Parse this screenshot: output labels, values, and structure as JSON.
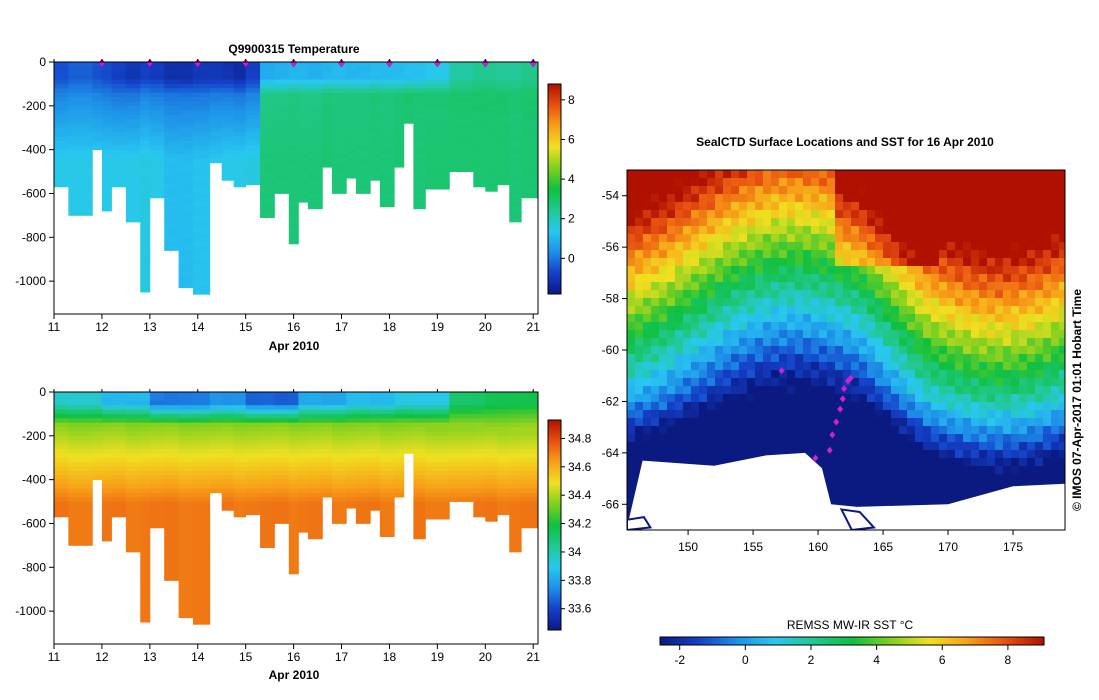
{
  "colors": {
    "temperature_ramp": [
      "#0a1a80",
      "#1440c8",
      "#1e90e8",
      "#28c8f0",
      "#22c890",
      "#10c040",
      "#80d020",
      "#f0e020",
      "#f8a018",
      "#e85010",
      "#b01000"
    ],
    "salinity_ramp": [
      "#0a1a80",
      "#1440c8",
      "#1e90e8",
      "#28c8f0",
      "#22c890",
      "#10c040",
      "#80d020",
      "#f0e020",
      "#f8a018",
      "#e85010",
      "#b01000"
    ],
    "sst_ramp": [
      "#0a1a80",
      "#1440c8",
      "#1e90e8",
      "#28c8f0",
      "#22c890",
      "#10c040",
      "#80d020",
      "#f0e020",
      "#f8a018",
      "#e85010",
      "#b01000"
    ],
    "profile_marker": "#d020d0",
    "land": "#ffffff"
  },
  "chart_data": [
    {
      "type": "heatmap",
      "title": "Q9900315  Temperature",
      "xlabel": "Apr 2010",
      "ylabel": "",
      "x_ticks": [
        "11",
        "12",
        "13",
        "14",
        "15",
        "16",
        "17",
        "18",
        "19",
        "20",
        "21"
      ],
      "xlim": [
        11,
        21.1
      ],
      "y_ticks": [
        "0",
        "-200",
        "-400",
        "-600",
        "-800",
        "-1000"
      ],
      "ylim": [
        -1150,
        0
      ],
      "colorbar": {
        "ticks": [
          "0",
          "2",
          "4",
          "6",
          "8"
        ],
        "range": [
          -1.8,
          8.8
        ]
      },
      "profile_days": [
        12,
        13,
        14,
        15,
        16,
        17,
        18,
        19,
        20,
        21
      ],
      "columns": [
        {
          "x0": 11.0,
          "x1": 11.3,
          "depth": -570,
          "surface": -0.5,
          "upper": 0.2,
          "deep": 1.5
        },
        {
          "x0": 11.3,
          "x1": 11.8,
          "depth": -700,
          "surface": -0.3,
          "upper": 0.3,
          "deep": 1.5
        },
        {
          "x0": 11.8,
          "x1": 12.0,
          "depth": -400,
          "surface": -0.5,
          "upper": 0.2,
          "deep": 1.5
        },
        {
          "x0": 12.0,
          "x1": 12.2,
          "depth": -680,
          "surface": -0.6,
          "upper": 0.1,
          "deep": 1.5
        },
        {
          "x0": 12.2,
          "x1": 12.5,
          "depth": -570,
          "surface": -0.8,
          "upper": 0.0,
          "deep": 1.5
        },
        {
          "x0": 12.5,
          "x1": 12.8,
          "depth": -730,
          "surface": -1.0,
          "upper": 0.0,
          "deep": 1.5
        },
        {
          "x0": 12.8,
          "x1": 13.0,
          "depth": -1050,
          "surface": -0.8,
          "upper": 0.2,
          "deep": 1.6
        },
        {
          "x0": 13.0,
          "x1": 13.3,
          "depth": -620,
          "surface": -0.9,
          "upper": 0.1,
          "deep": 1.5
        },
        {
          "x0": 13.3,
          "x1": 13.6,
          "depth": -860,
          "surface": -1.2,
          "upper": 0.0,
          "deep": 1.2
        },
        {
          "x0": 13.6,
          "x1": 13.9,
          "depth": -1030,
          "surface": -1.2,
          "upper": 0.0,
          "deep": 1.2
        },
        {
          "x0": 13.9,
          "x1": 14.25,
          "depth": -1060,
          "surface": -1.0,
          "upper": 0.0,
          "deep": 1.3
        },
        {
          "x0": 14.25,
          "x1": 14.5,
          "depth": -460,
          "surface": -1.0,
          "upper": 0.1,
          "deep": 1.4
        },
        {
          "x0": 14.5,
          "x1": 14.75,
          "depth": -540,
          "surface": -1.1,
          "upper": 0.1,
          "deep": 1.5
        },
        {
          "x0": 14.75,
          "x1": 15.0,
          "depth": -570,
          "surface": -1.3,
          "upper": 0.0,
          "deep": 1.5
        },
        {
          "x0": 15.0,
          "x1": 15.3,
          "depth": -560,
          "surface": -0.8,
          "upper": 0.2,
          "deep": 1.6
        },
        {
          "x0": 15.3,
          "x1": 15.6,
          "depth": -710,
          "surface": 0.8,
          "upper": 2.6,
          "deep": 2.8
        },
        {
          "x0": 15.6,
          "x1": 15.9,
          "depth": -600,
          "surface": 0.9,
          "upper": 2.6,
          "deep": 2.8
        },
        {
          "x0": 15.9,
          "x1": 16.1,
          "depth": -830,
          "surface": 1.0,
          "upper": 2.7,
          "deep": 2.8
        },
        {
          "x0": 16.1,
          "x1": 16.3,
          "depth": -640,
          "surface": 1.0,
          "upper": 2.6,
          "deep": 2.8
        },
        {
          "x0": 16.3,
          "x1": 16.6,
          "depth": -670,
          "surface": 0.9,
          "upper": 2.6,
          "deep": 2.8
        },
        {
          "x0": 16.6,
          "x1": 16.8,
          "depth": -480,
          "surface": 1.0,
          "upper": 2.8,
          "deep": 2.9
        },
        {
          "x0": 16.8,
          "x1": 17.1,
          "depth": -600,
          "surface": 1.1,
          "upper": 2.7,
          "deep": 2.8
        },
        {
          "x0": 17.1,
          "x1": 17.3,
          "depth": -530,
          "surface": 1.0,
          "upper": 2.7,
          "deep": 2.8
        },
        {
          "x0": 17.3,
          "x1": 17.6,
          "depth": -600,
          "surface": 1.0,
          "upper": 2.7,
          "deep": 2.8
        },
        {
          "x0": 17.6,
          "x1": 17.8,
          "depth": -540,
          "surface": 1.1,
          "upper": 2.8,
          "deep": 2.8
        },
        {
          "x0": 17.8,
          "x1": 18.1,
          "depth": -660,
          "surface": 1.1,
          "upper": 2.7,
          "deep": 2.8
        },
        {
          "x0": 18.1,
          "x1": 18.3,
          "depth": -480,
          "surface": 1.1,
          "upper": 2.8,
          "deep": 2.9
        },
        {
          "x0": 18.3,
          "x1": 18.5,
          "depth": -280,
          "surface": 1.2,
          "upper": 2.9,
          "deep": 2.9
        },
        {
          "x0": 18.5,
          "x1": 18.75,
          "depth": -670,
          "surface": 1.2,
          "upper": 2.8,
          "deep": 2.8
        },
        {
          "x0": 18.75,
          "x1": 19.25,
          "depth": -580,
          "surface": 1.4,
          "upper": 2.8,
          "deep": 2.9
        },
        {
          "x0": 19.25,
          "x1": 19.75,
          "depth": -500,
          "surface": 2.2,
          "upper": 2.9,
          "deep": 2.9
        },
        {
          "x0": 19.75,
          "x1": 20.0,
          "depth": -570,
          "surface": 2.4,
          "upper": 2.9,
          "deep": 2.9
        },
        {
          "x0": 20.0,
          "x1": 20.25,
          "depth": -590,
          "surface": 2.4,
          "upper": 2.9,
          "deep": 2.9
        },
        {
          "x0": 20.25,
          "x1": 20.5,
          "depth": -560,
          "surface": 2.3,
          "upper": 2.9,
          "deep": 2.9
        },
        {
          "x0": 20.5,
          "x1": 20.75,
          "depth": -730,
          "surface": 2.3,
          "upper": 2.8,
          "deep": 2.8
        },
        {
          "x0": 20.75,
          "x1": 21.1,
          "depth": -620,
          "surface": 2.5,
          "upper": 2.9,
          "deep": 2.9
        }
      ]
    },
    {
      "type": "heatmap",
      "title": "",
      "xlabel": "Apr 2010",
      "ylabel": "",
      "x_ticks": [
        "11",
        "12",
        "13",
        "14",
        "15",
        "16",
        "17",
        "18",
        "19",
        "20",
        "21"
      ],
      "xlim": [
        11,
        21.1
      ],
      "y_ticks": [
        "0",
        "-200",
        "-400",
        "-600",
        "-800",
        "-1000"
      ],
      "ylim": [
        -1150,
        0
      ],
      "colorbar": {
        "ticks": [
          "33.6",
          "33.8",
          "34",
          "34.2",
          "34.4",
          "34.6",
          "34.8"
        ],
        "range": [
          33.45,
          34.93
        ]
      },
      "surface_salinity": [
        33.95,
        33.85,
        33.7,
        33.75,
        33.65,
        33.8,
        33.85,
        33.9,
        34.1,
        34.15
      ],
      "deep_salinity": 34.72
    },
    {
      "type": "heatmap",
      "title": "SealCTD Surface Locations and SST for 16 Apr 2010",
      "xlabel": "",
      "ylabel": "",
      "x_ticks": [
        "150",
        "155",
        "160",
        "165",
        "170",
        "175"
      ],
      "xlim": [
        145.3,
        179
      ],
      "y_ticks": [
        "-54",
        "-56",
        "-58",
        "-60",
        "-62",
        "-64",
        "-66"
      ],
      "ylim": [
        -67,
        -53
      ],
      "colorbar_label": "REMSS MW-IR SST °C",
      "colorbar": {
        "ticks": [
          "-2",
          "0",
          "2",
          "4",
          "6",
          "8"
        ],
        "range": [
          -2.6,
          9.1
        ]
      },
      "profile_locations": [
        {
          "lon": 162.3,
          "lat": -61.2
        },
        {
          "lon": 162.0,
          "lat": -61.5
        },
        {
          "lon": 161.9,
          "lat": -61.9
        },
        {
          "lon": 161.7,
          "lat": -62.3
        },
        {
          "lon": 161.4,
          "lat": -62.8
        },
        {
          "lon": 161.1,
          "lat": -63.3
        },
        {
          "lon": 160.9,
          "lat": -63.9
        },
        {
          "lon": 159.8,
          "lat": -64.2
        },
        {
          "lon": 157.2,
          "lat": -60.8
        },
        {
          "lon": 162.5,
          "lat": -61.1
        }
      ]
    }
  ],
  "credit": "©  IMOS 07-Apr-2017 01:01 Hobart Time"
}
